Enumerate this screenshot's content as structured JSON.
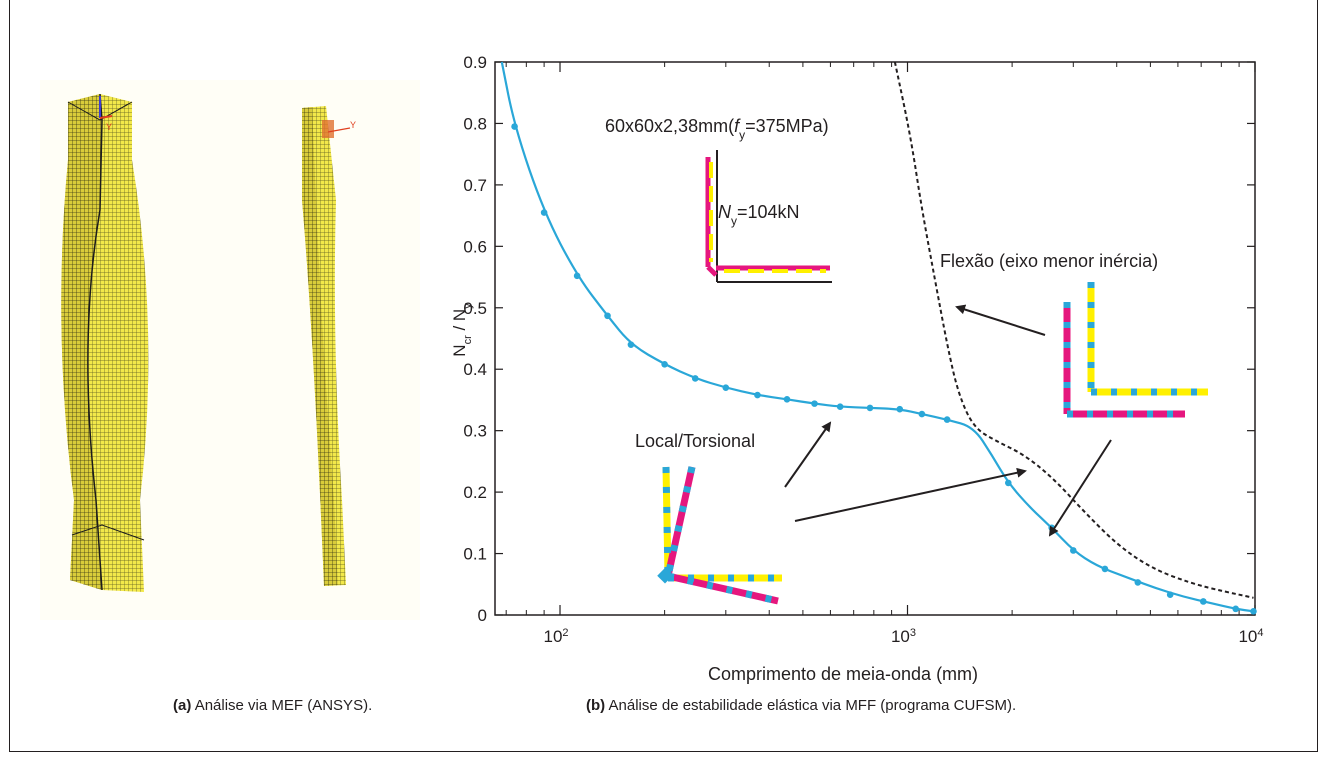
{
  "captions": {
    "a_label": "(a)",
    "a_text": "Análise via MEF (ANSYS).",
    "b_label": "(b)",
    "b_text": "Análise de estabilidade elástica via MFF (programa CUFSM)."
  },
  "mef": {
    "axis_marker_left": "Y",
    "axis_marker_right": "Y",
    "mesh_color": "#f2e84a",
    "mesh_line_color": "#5a5a20"
  },
  "chart_data": {
    "type": "line",
    "xscale": "log",
    "xlim": [
      65,
      10000
    ],
    "ylim": [
      0,
      0.9
    ],
    "xlabel": "Comprimento de meia-onda (mm)",
    "ylabel_main": "N",
    "ylabel_sub1": "cr",
    "ylabel_sep": " / N",
    "ylabel_sub2": "y",
    "xticks": [
      {
        "value": 100,
        "base": "10",
        "exp": "2"
      },
      {
        "value": 1000,
        "base": "10",
        "exp": "3"
      },
      {
        "value": 10000,
        "base": "10",
        "exp": "4"
      }
    ],
    "yticks": [
      "0",
      "0.1",
      "0.2",
      "0.3",
      "0.4",
      "0.5",
      "0.6",
      "0.7",
      "0.8",
      "0.9"
    ],
    "series": [
      {
        "line_color": "#2aa7d8",
        "points": [
          [
            68,
            0.9
          ],
          [
            74,
            0.795
          ],
          [
            90,
            0.655
          ],
          [
            112,
            0.552
          ],
          [
            137,
            0.487
          ],
          [
            160,
            0.44
          ],
          [
            200,
            0.408
          ],
          [
            245,
            0.385
          ],
          [
            300,
            0.37
          ],
          [
            370,
            0.358
          ],
          [
            450,
            0.351
          ],
          [
            540,
            0.344
          ],
          [
            640,
            0.339
          ],
          [
            780,
            0.337
          ],
          [
            950,
            0.335
          ],
          [
            1100,
            0.327
          ],
          [
            1300,
            0.318
          ],
          [
            1550,
            0.306
          ],
          [
            1750,
            0.26
          ],
          [
            1950,
            0.215
          ],
          [
            2250,
            0.175
          ],
          [
            2600,
            0.142
          ],
          [
            3000,
            0.105
          ],
          [
            3500,
            0.08
          ],
          [
            4200,
            0.063
          ],
          [
            5100,
            0.045
          ],
          [
            6200,
            0.03
          ],
          [
            7500,
            0.019
          ],
          [
            8800,
            0.01
          ],
          [
            9900,
            0.006
          ]
        ],
        "markers": [
          [
            74,
            0.795
          ],
          [
            90,
            0.655
          ],
          [
            112,
            0.552
          ],
          [
            137,
            0.487
          ],
          [
            160,
            0.44
          ],
          [
            200,
            0.408
          ],
          [
            245,
            0.385
          ],
          [
            300,
            0.37
          ],
          [
            370,
            0.358
          ],
          [
            450,
            0.351
          ],
          [
            540,
            0.344
          ],
          [
            640,
            0.339
          ],
          [
            780,
            0.337
          ],
          [
            950,
            0.335
          ],
          [
            1100,
            0.327
          ],
          [
            1300,
            0.318
          ],
          [
            1950,
            0.215
          ],
          [
            2600,
            0.142
          ],
          [
            3000,
            0.105
          ],
          [
            3700,
            0.075
          ],
          [
            4600,
            0.053
          ],
          [
            5700,
            0.033
          ],
          [
            7100,
            0.022
          ],
          [
            8800,
            0.01
          ],
          [
            9900,
            0.006
          ]
        ]
      },
      {
        "line_color": "#231f20",
        "dashed": true,
        "points": [
          [
            920,
            0.9
          ],
          [
            1020,
            0.78
          ],
          [
            1100,
            0.66
          ],
          [
            1200,
            0.545
          ],
          [
            1300,
            0.44
          ],
          [
            1400,
            0.36
          ],
          [
            1550,
            0.305
          ],
          [
            1800,
            0.283
          ],
          [
            2150,
            0.262
          ],
          [
            2600,
            0.225
          ],
          [
            3200,
            0.17
          ],
          [
            4000,
            0.115
          ],
          [
            5000,
            0.077
          ],
          [
            6500,
            0.052
          ],
          [
            8200,
            0.038
          ],
          [
            9900,
            0.028
          ]
        ]
      }
    ],
    "annotations": {
      "section": "60x60x2,38mm(",
      "fy_f": "f",
      "fy_sub": "y",
      "fy_val": "=375MPa)",
      "ny_n": "N",
      "ny_sub": "y",
      "ny_val": "=104kN",
      "flexao": "Flexão (eixo menor inércia)",
      "local_torsional": "Local/Torsional"
    },
    "colors": {
      "magenta": "#e5177e",
      "yellow": "#fff000",
      "cyan": "#2aa7d8",
      "axis": "#231f20"
    }
  }
}
